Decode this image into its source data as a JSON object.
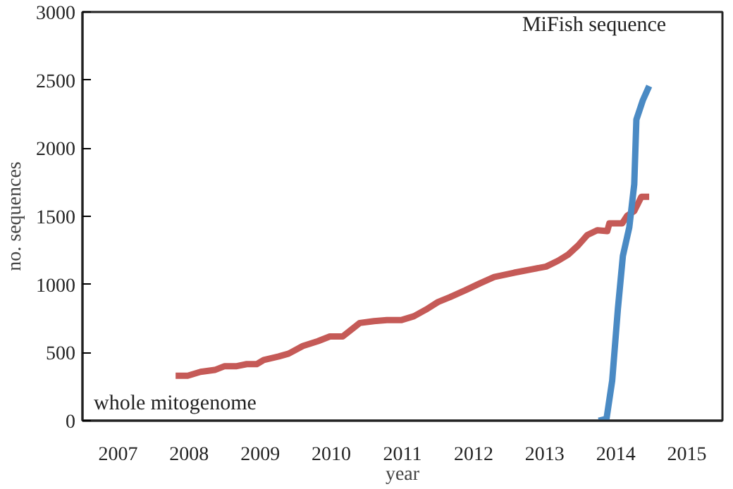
{
  "chart_data": {
    "type": "line",
    "xlabel": "year",
    "ylabel": "no. sequences",
    "xlim": [
      2007,
      2016
    ],
    "ylim": [
      0,
      3000
    ],
    "xticks": [
      {
        "value": 2007,
        "label": null
      },
      {
        "value": 2008,
        "label": null
      },
      {
        "value": 2009,
        "label": null
      },
      {
        "value": 2010,
        "label": null
      },
      {
        "value": 2011,
        "label": null
      },
      {
        "value": 2012,
        "label": null
      },
      {
        "value": 2013,
        "label": null
      },
      {
        "value": 2014,
        "label": null
      },
      {
        "value": 2015,
        "label": null
      },
      {
        "value": 2016,
        "label": null
      },
      {
        "value": 2007.5,
        "label": "2007"
      },
      {
        "value": 2008.5,
        "label": "2008"
      },
      {
        "value": 2009.5,
        "label": "2009"
      },
      {
        "value": 2010.5,
        "label": "2010"
      },
      {
        "value": 2011.5,
        "label": "2011"
      },
      {
        "value": 2012.5,
        "label": "2012"
      },
      {
        "value": 2013.5,
        "label": "2013"
      },
      {
        "value": 2014.5,
        "label": "2014"
      },
      {
        "value": 2015.5,
        "label": "2015"
      }
    ],
    "yticks": [
      0,
      500,
      1000,
      1500,
      2000,
      2500,
      3000
    ],
    "grid": false,
    "legend": false,
    "marker": "none",
    "line_style": "solid",
    "series": [
      {
        "name": "whole mitogenome",
        "color": "#c55a57",
        "x": [
          2008.31,
          2008.48,
          2008.66,
          2008.86,
          2009.0,
          2009.17,
          2009.31,
          2009.45,
          2009.55,
          2009.76,
          2009.9,
          2010.1,
          2010.31,
          2010.48,
          2010.66,
          2010.9,
          2011.1,
          2011.28,
          2011.48,
          2011.66,
          2011.83,
          2012.0,
          2012.17,
          2012.38,
          2012.59,
          2012.79,
          2013.07,
          2013.31,
          2013.52,
          2013.69,
          2013.83,
          2013.97,
          2014.1,
          2014.24,
          2014.38,
          2014.41,
          2014.59,
          2014.66,
          2014.76,
          2014.86,
          2014.97
        ],
        "values": [
          330,
          330,
          358,
          372,
          400,
          400,
          415,
          415,
          446,
          471,
          492,
          548,
          583,
          618,
          618,
          717,
          731,
          738,
          738,
          766,
          815,
          871,
          907,
          956,
          1008,
          1054,
          1086,
          1110,
          1131,
          1174,
          1219,
          1286,
          1363,
          1398,
          1391,
          1448,
          1448,
          1504,
          1539,
          1644,
          1644
        ]
      },
      {
        "name": "MiFish sequence",
        "color": "#4a8ac4",
        "x": [
          2014.26,
          2014.37,
          2014.45,
          2014.53,
          2014.6,
          2014.69,
          2014.76,
          2014.79,
          2014.88,
          2014.97
        ],
        "values": [
          0,
          14,
          295,
          822,
          1209,
          1419,
          1736,
          2210,
          2351,
          2456
        ]
      }
    ]
  }
}
